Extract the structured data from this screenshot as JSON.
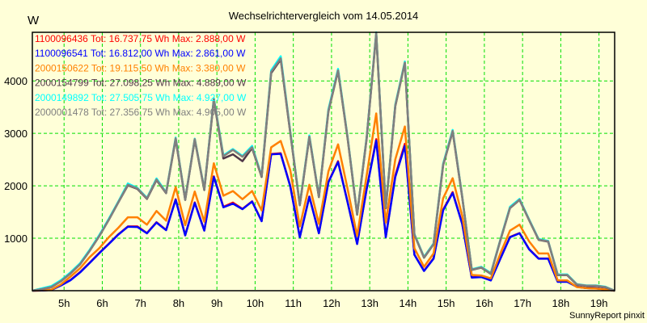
{
  "chart_data": {
    "type": "line",
    "title": "Wechselrichtervergleich vom 14.05.2014",
    "ylabel": "W",
    "xlabel": "",
    "credit": "SunnyReport pinxit",
    "ylim": [
      0,
      4927
    ],
    "xlim": [
      4.17,
      19.41
    ],
    "grid": true,
    "legend_position": "top-left",
    "y_ticks": [
      {
        "value": 1000,
        "label": "1000"
      },
      {
        "value": 2000,
        "label": "2000"
      },
      {
        "value": 3000,
        "label": "3000"
      },
      {
        "value": 4000,
        "label": "4000"
      }
    ],
    "x_ticks": [
      {
        "value": 5,
        "label": "5h"
      },
      {
        "value": 6,
        "label": "6h"
      },
      {
        "value": 7,
        "label": "7h"
      },
      {
        "value": 8,
        "label": "8h"
      },
      {
        "value": 9,
        "label": "9h"
      },
      {
        "value": 10,
        "label": "10h"
      },
      {
        "value": 11,
        "label": "11h"
      },
      {
        "value": 12,
        "label": "12h"
      },
      {
        "value": 13,
        "label": "13h"
      },
      {
        "value": 14,
        "label": "14h"
      },
      {
        "value": 15,
        "label": "15h"
      },
      {
        "value": 16,
        "label": "16h"
      },
      {
        "value": 17,
        "label": "17h"
      },
      {
        "value": 18,
        "label": "18h"
      },
      {
        "value": 19,
        "label": "19h"
      }
    ],
    "x_start": 4.17,
    "x_step": 0.25,
    "series": [
      {
        "name": "1100096436",
        "legend": "1100096436 Tot: 16.737,75 Wh Max: 2.888,00 W",
        "color": "#ff0000",
        "values": [
          0,
          5,
          15,
          105,
          205,
          355,
          535,
          720,
          895,
          1075,
          1225,
          1225,
          1100,
          1305,
          1160,
          1745,
          1060,
          1685,
          1150,
          2180,
          1600,
          1680,
          1560,
          1705,
          1330,
          2605,
          2620,
          2000,
          1025,
          1795,
          1100,
          2075,
          2470,
          1690,
          895,
          1950,
          2888,
          1030,
          2200,
          2800,
          690,
          380,
          620,
          1545,
          1880,
          1280,
          255,
          265,
          200,
          615,
          1025,
          1100,
          795,
          615,
          615,
          175,
          175,
          75,
          50,
          45,
          25,
          0
        ]
      },
      {
        "name": "1100096541",
        "legend": "1100096541 Tot: 16.812,00 Wh Max: 2.861,00 W",
        "color": "#0000ff",
        "values": [
          0,
          5,
          15,
          100,
          200,
          350,
          530,
          715,
          890,
          1070,
          1220,
          1215,
          1095,
          1300,
          1155,
          1735,
          1055,
          1675,
          1145,
          2170,
          1590,
          1660,
          1555,
          1700,
          1325,
          2600,
          2610,
          1990,
          1020,
          1790,
          1095,
          2070,
          2455,
          1685,
          890,
          1940,
          2861,
          1020,
          2170,
          2760,
          685,
          375,
          610,
          1530,
          1865,
          1275,
          250,
          260,
          195,
          610,
          1020,
          1095,
          790,
          610,
          610,
          170,
          170,
          75,
          50,
          45,
          25,
          0
        ]
      },
      {
        "name": "2000150622",
        "legend": "2000150622 Tot: 19.115,50 Wh Max: 3.380,00 W",
        "color": "#ff8000",
        "values": [
          0,
          10,
          20,
          120,
          270,
          430,
          640,
          810,
          1020,
          1200,
          1400,
          1400,
          1260,
          1520,
          1335,
          1975,
          1250,
          1890,
          1315,
          2430,
          1810,
          1900,
          1745,
          1900,
          1530,
          2735,
          2855,
          2300,
          1225,
          2020,
          1275,
          2275,
          2790,
          1940,
          1045,
          2200,
          3380,
          1300,
          2505,
          3130,
          810,
          455,
          710,
          1760,
          2145,
          1430,
          300,
          290,
          235,
          710,
          1145,
          1260,
          940,
          710,
          710,
          195,
          195,
          70,
          50,
          40,
          25,
          0
        ]
      },
      {
        "name": "2000149892",
        "legend": "2000149892 Tot: 27.505,75 Wh Max: 4.927,00 W",
        "color": "#00ffff",
        "values": [
          0,
          45,
          90,
          200,
          350,
          525,
          780,
          1060,
          1370,
          1700,
          2045,
          1960,
          1770,
          2140,
          1875,
          2920,
          1745,
          2900,
          1940,
          3670,
          2580,
          2700,
          2570,
          2760,
          2190,
          4200,
          4470,
          3040,
          1650,
          2960,
          1800,
          3460,
          4230,
          2930,
          1465,
          2930,
          4927,
          1590,
          3550,
          4370,
          1080,
          645,
          900,
          2420,
          3065,
          1800,
          410,
          455,
          335,
          975,
          1600,
          1750,
          1360,
          985,
          950,
          310,
          310,
          125,
          100,
          100,
          75,
          0
        ]
      },
      {
        "name": "2000154799",
        "legend": "2000154799 Tot: 27.098,25 Wh Max: 4.889,00 W",
        "color": "#503848",
        "values": [
          0,
          30,
          70,
          180,
          330,
          505,
          760,
          1040,
          1350,
          1685,
          2010,
          1940,
          1750,
          2110,
          1860,
          2890,
          1730,
          2880,
          1920,
          3640,
          2520,
          2600,
          2470,
          2720,
          2170,
          4150,
          4410,
          3010,
          1630,
          2930,
          1785,
          3420,
          4190,
          2905,
          1450,
          2905,
          4889,
          1575,
          3520,
          4340,
          1065,
          630,
          885,
          2390,
          3035,
          1785,
          395,
          440,
          320,
          960,
          1575,
          1730,
          1345,
          970,
          935,
          295,
          295,
          115,
          90,
          90,
          65,
          0
        ]
      },
      {
        "name": "2000001478",
        "legend": "2000001478 Tot: 27.356,75 Wh Max: 4.905,00 W",
        "color": "#808080",
        "values": [
          0,
          30,
          70,
          180,
          330,
          505,
          760,
          1040,
          1350,
          1685,
          2020,
          1950,
          1760,
          2120,
          1865,
          2905,
          1735,
          2890,
          1930,
          3650,
          2565,
          2685,
          2555,
          2735,
          2180,
          4170,
          4430,
          3020,
          1635,
          2940,
          1790,
          3430,
          4200,
          2915,
          1455,
          2915,
          4905,
          1580,
          3530,
          4350,
          1070,
          635,
          890,
          2400,
          3045,
          1790,
          400,
          445,
          325,
          965,
          1580,
          1735,
          1350,
          975,
          940,
          300,
          300,
          120,
          95,
          95,
          70,
          0
        ]
      }
    ],
    "colors": {
      "background": "#ffffd8",
      "grid": "#00e000",
      "axis": "#000000"
    }
  }
}
